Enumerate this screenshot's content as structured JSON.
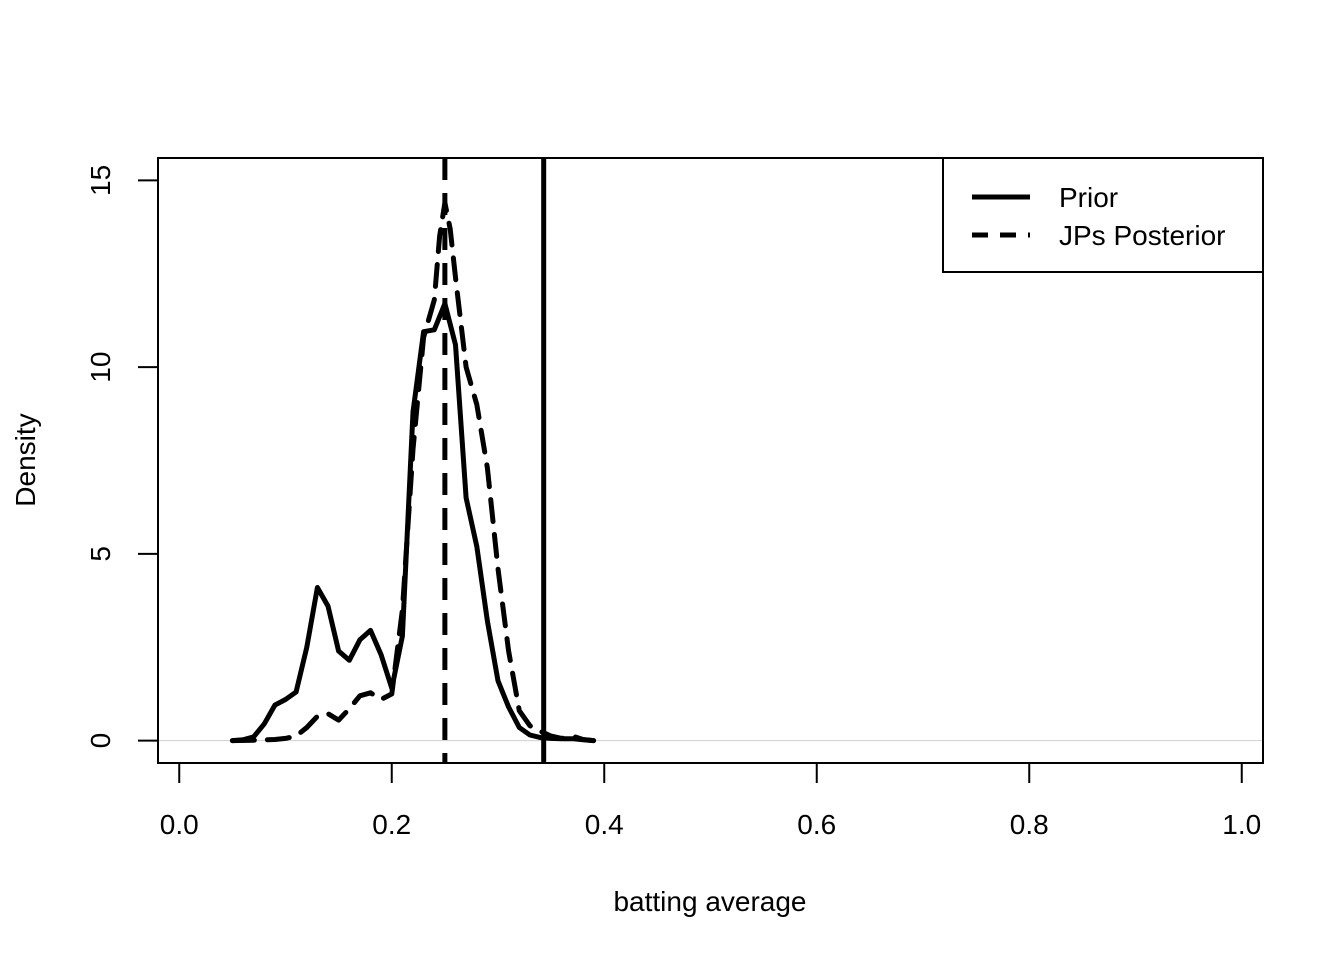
{
  "chart_data": {
    "type": "line",
    "title": "",
    "xlabel": "batting average",
    "ylabel": "Density",
    "xlim": [
      -0.02,
      1.02
    ],
    "ylim": [
      -0.6,
      15.6
    ],
    "x_ticks": [
      "0.0",
      "0.2",
      "0.4",
      "0.6",
      "0.8",
      "1.0"
    ],
    "y_ticks": [
      "0",
      "5",
      "10",
      "15"
    ],
    "legend": {
      "position": "top-right",
      "entries": [
        "Prior",
        "JPs Posterior"
      ]
    },
    "grid": false,
    "series": [
      {
        "name": "Prior",
        "style": "solid",
        "points": [
          [
            0.05,
            0.0
          ],
          [
            0.06,
            0.02
          ],
          [
            0.07,
            0.1
          ],
          [
            0.08,
            0.45
          ],
          [
            0.09,
            0.95
          ],
          [
            0.1,
            1.1
          ],
          [
            0.11,
            1.3
          ],
          [
            0.12,
            2.5
          ],
          [
            0.13,
            4.1
          ],
          [
            0.14,
            3.6
          ],
          [
            0.15,
            2.4
          ],
          [
            0.16,
            2.15
          ],
          [
            0.17,
            2.7
          ],
          [
            0.18,
            2.95
          ],
          [
            0.19,
            2.3
          ],
          [
            0.2,
            1.4
          ],
          [
            0.21,
            2.8
          ],
          [
            0.22,
            8.8
          ],
          [
            0.23,
            10.95
          ],
          [
            0.24,
            11.0
          ],
          [
            0.25,
            11.7
          ],
          [
            0.26,
            10.6
          ],
          [
            0.27,
            6.5
          ],
          [
            0.28,
            5.2
          ],
          [
            0.29,
            3.2
          ],
          [
            0.3,
            1.6
          ],
          [
            0.31,
            0.9
          ],
          [
            0.32,
            0.35
          ],
          [
            0.33,
            0.15
          ],
          [
            0.34,
            0.08
          ],
          [
            0.35,
            0.06
          ],
          [
            0.36,
            0.05
          ],
          [
            0.37,
            0.05
          ],
          [
            0.38,
            0.02
          ],
          [
            0.39,
            0.0
          ]
        ]
      },
      {
        "name": "JPs Posterior",
        "style": "dashed",
        "points": [
          [
            0.05,
            0.0
          ],
          [
            0.07,
            0.01
          ],
          [
            0.09,
            0.03
          ],
          [
            0.1,
            0.06
          ],
          [
            0.11,
            0.12
          ],
          [
            0.12,
            0.35
          ],
          [
            0.13,
            0.65
          ],
          [
            0.14,
            0.72
          ],
          [
            0.15,
            0.55
          ],
          [
            0.16,
            0.85
          ],
          [
            0.17,
            1.2
          ],
          [
            0.18,
            1.28
          ],
          [
            0.19,
            1.1
          ],
          [
            0.2,
            1.25
          ],
          [
            0.21,
            3.5
          ],
          [
            0.22,
            7.8
          ],
          [
            0.23,
            10.8
          ],
          [
            0.24,
            11.8
          ],
          [
            0.245,
            13.5
          ],
          [
            0.25,
            14.4
          ],
          [
            0.255,
            13.7
          ],
          [
            0.26,
            12.4
          ],
          [
            0.27,
            10.0
          ],
          [
            0.28,
            9.0
          ],
          [
            0.29,
            7.3
          ],
          [
            0.3,
            4.6
          ],
          [
            0.31,
            2.4
          ],
          [
            0.32,
            0.8
          ],
          [
            0.33,
            0.4
          ],
          [
            0.34,
            0.25
          ],
          [
            0.35,
            0.12
          ],
          [
            0.36,
            0.06
          ],
          [
            0.37,
            0.12
          ],
          [
            0.38,
            0.03
          ],
          [
            0.39,
            0.0
          ]
        ]
      }
    ],
    "reference_lines": [
      {
        "x": 0.25,
        "style": "dashed"
      },
      {
        "x": 0.343,
        "style": "solid"
      }
    ]
  }
}
